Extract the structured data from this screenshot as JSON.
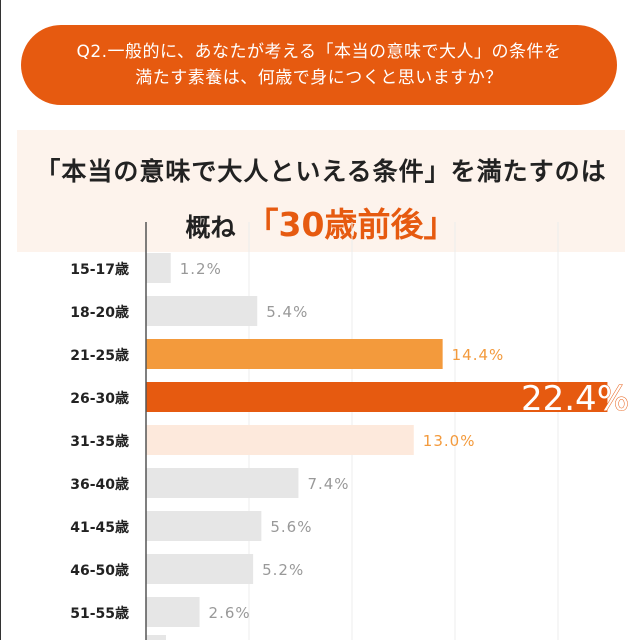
{
  "question": "Q2.一般的に、あなたが考える「本当の意味で大人」の条件を満たす素養は、何歳で身につくと思いますか？",
  "question_lines": [
    "Q2.一般的に、あなたが考える「本当の意味で大人」の条件を",
    "満たす素養は、何歳で身につくと思いますか？"
  ],
  "summary": {
    "line1": "「本当の意味で大人といえる条件」を満たすのは",
    "line2_prefix": "概ね",
    "highlight": "「30歳前後」"
  },
  "colors": {
    "accent": "#e65a10",
    "secondary": "#f39a3c",
    "light": "#fde9dc",
    "grey": "#e6e6e6"
  },
  "chart_data": {
    "type": "bar",
    "orientation": "horizontal",
    "categories": [
      "15-17歳",
      "18-20歳",
      "21-25歳",
      "26-30歳",
      "31-35歳",
      "36-40歳",
      "41-45歳",
      "46-50歳",
      "51-55歳"
    ],
    "values": [
      1.2,
      5.4,
      14.4,
      22.4,
      13.0,
      7.4,
      5.6,
      5.2,
      2.6
    ],
    "labels": [
      "1.2%",
      "5.4%",
      "14.4%",
      "22.4%",
      "13.0%",
      "7.4%",
      "5.6%",
      "5.2%",
      "2.6%"
    ],
    "xlim": [
      0,
      25
    ],
    "grid": true,
    "gridlines": [
      5,
      10,
      15,
      20
    ],
    "unit": "%"
  }
}
